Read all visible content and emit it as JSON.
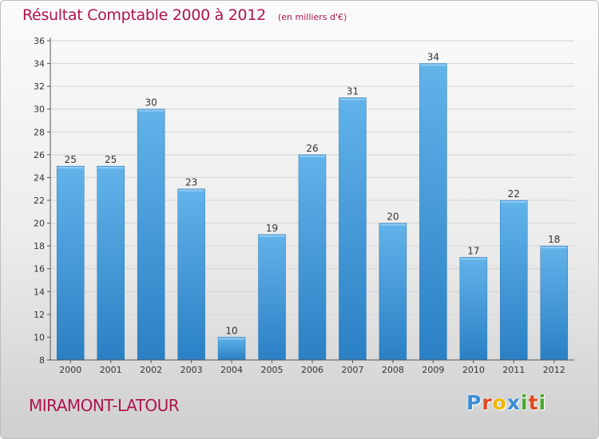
{
  "header": {
    "title": "Résultat Comptable 2000 à 2012",
    "subtitle": "(en milliers d'€)"
  },
  "footer": {
    "commune": "MIRAMONT-LATOUR",
    "brand_letters": [
      "P",
      "r",
      "o",
      "x",
      "i",
      "t",
      "i"
    ],
    "brand_colors": [
      "#3a8ed6",
      "#e04a1f",
      "#f2b705",
      "#3a8ed6",
      "#4aa82b",
      "#e04a1f",
      "#4aa82b"
    ]
  },
  "colors": {
    "bar_light": "#62b3ea",
    "bar_dark": "#2a80c4",
    "axis": "#555555",
    "grid": "#d4d4d4",
    "title": "#b0124e"
  },
  "chart_data": {
    "type": "bar",
    "title": "Résultat Comptable 2000 à 2012",
    "subtitle": "(en milliers d'€)",
    "categories": [
      "2000",
      "2001",
      "2002",
      "2003",
      "2004",
      "2005",
      "2006",
      "2007",
      "2008",
      "2009",
      "2010",
      "2011",
      "2012"
    ],
    "values": [
      25,
      25,
      30,
      23,
      10,
      19,
      26,
      31,
      20,
      34,
      17,
      22,
      18
    ],
    "ylim": [
      8,
      36
    ],
    "yticks": [
      8,
      10,
      12,
      14,
      16,
      18,
      20,
      22,
      24,
      26,
      28,
      30,
      32,
      34,
      36
    ],
    "xlabel": "",
    "ylabel": "",
    "grid": true,
    "legend": "none"
  }
}
